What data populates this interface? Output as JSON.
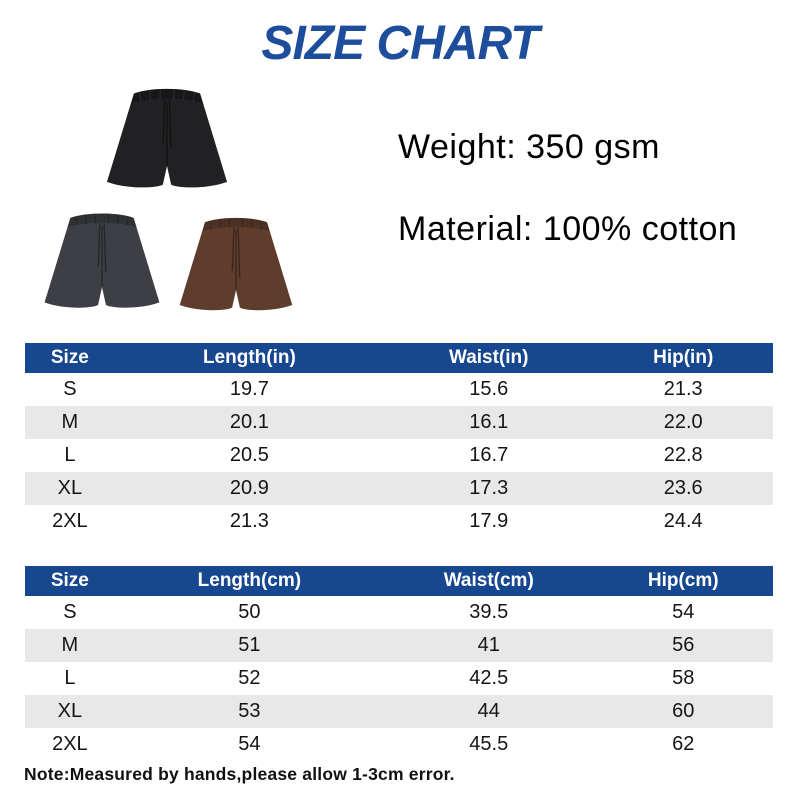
{
  "title": "SIZE CHART",
  "colors": {
    "title_blue": "#1d4d9b",
    "header_blue": "#17478f",
    "row_stripe": "#e8e8e8",
    "shorts_black": "#212124",
    "shorts_charcoal": "#3d3f45",
    "shorts_brown": "#5f3d2d"
  },
  "images": {
    "black_shorts": "black-shorts-photo",
    "gray_shorts": "gray-shorts-photo",
    "brown_shorts": "brown-shorts-photo"
  },
  "product": {
    "weight": "Weight: 350 gsm",
    "material": "Material: 100% cotton"
  },
  "tables": [
    {
      "name": "inches",
      "headers": [
        "Size",
        "Length(in)",
        "Waist(in)",
        "Hip(in)"
      ],
      "rows": [
        [
          "S",
          "19.7",
          "15.6",
          "21.3"
        ],
        [
          "M",
          "20.1",
          "16.1",
          "22.0"
        ],
        [
          "L",
          "20.5",
          "16.7",
          "22.8"
        ],
        [
          "XL",
          "20.9",
          "17.3",
          "23.6"
        ],
        [
          "2XL",
          "21.3",
          "17.9",
          "24.4"
        ]
      ]
    },
    {
      "name": "centimeters",
      "headers": [
        "Size",
        "Length(cm)",
        "Waist(cm)",
        "Hip(cm)"
      ],
      "rows": [
        [
          "S",
          "50",
          "39.5",
          "54"
        ],
        [
          "M",
          "51",
          "41",
          "56"
        ],
        [
          "L",
          "52",
          "42.5",
          "58"
        ],
        [
          "XL",
          "53",
          "44",
          "60"
        ],
        [
          "2XL",
          "54",
          "45.5",
          "62"
        ]
      ]
    }
  ],
  "note": "Note:Measured by hands,please allow 1-3cm error."
}
